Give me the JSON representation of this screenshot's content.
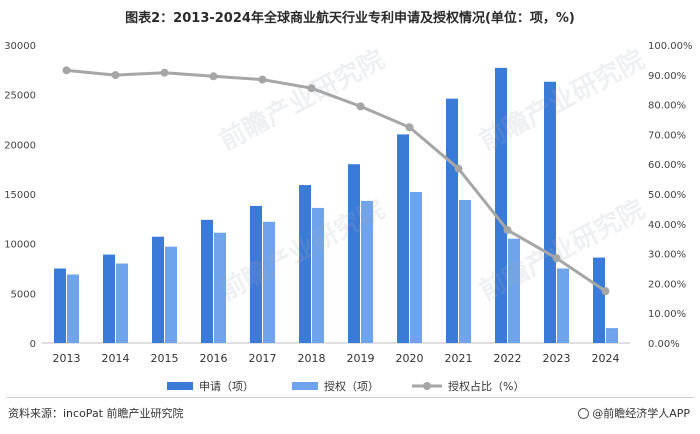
{
  "title": "图表2：2013-2024年全球商业航天行业专利申请及授权情况(单位：项，%)",
  "source": "资料来源：incoPat 前瞻产业研究院",
  "brand": "@前瞻经济学人APP",
  "watermark": "前瞻产业研究院",
  "colors": {
    "applications": "#3b7bd8",
    "grants": "#6fa3ec",
    "ratio": "#a6a6a6"
  },
  "chart_data": {
    "type": "bar",
    "categories": [
      "2013",
      "2014",
      "2015",
      "2016",
      "2017",
      "2018",
      "2019",
      "2020",
      "2021",
      "2022",
      "2023",
      "2024"
    ],
    "series": [
      {
        "name": "申请（项）",
        "type": "bar",
        "axis": "left",
        "values": [
          7500,
          8900,
          10700,
          12400,
          13800,
          15900,
          18000,
          21000,
          24600,
          27700,
          26300,
          8600
        ]
      },
      {
        "name": "授权（项）",
        "type": "bar",
        "axis": "left",
        "values": [
          6900,
          8000,
          9700,
          11100,
          12200,
          13600,
          14300,
          15200,
          14400,
          10500,
          7500,
          1500
        ]
      },
      {
        "name": "授权占比（%）",
        "type": "line",
        "axis": "right",
        "values": [
          91.5,
          89.9,
          90.7,
          89.5,
          88.4,
          85.5,
          79.4,
          72.4,
          58.5,
          37.9,
          28.5,
          17.4
        ]
      }
    ],
    "y_left": {
      "min": 0,
      "max": 30000,
      "ticks": [
        "0",
        "5000",
        "10000",
        "15000",
        "20000",
        "25000",
        "30000"
      ]
    },
    "y_right": {
      "min": 0,
      "max": 100,
      "ticks": [
        "0.00%",
        "10.00%",
        "20.00%",
        "30.00%",
        "40.00%",
        "50.00%",
        "60.00%",
        "70.00%",
        "80.00%",
        "90.00%",
        "100.00%"
      ]
    },
    "grid": false,
    "legend": "bottom"
  }
}
